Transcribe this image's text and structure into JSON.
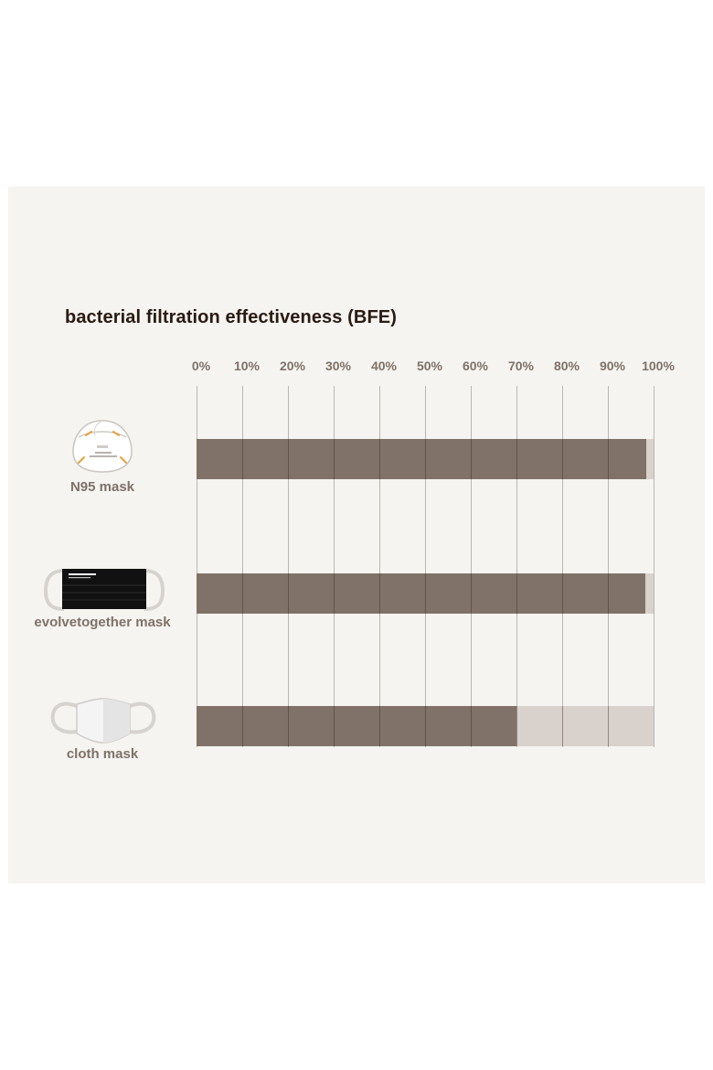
{
  "chart_data": {
    "type": "bar",
    "orientation": "horizontal",
    "title": "bacterial filtration effectiveness (BFE)",
    "x_ticks": [
      "0%",
      "10%",
      "20%",
      "30%",
      "40%",
      "50%",
      "60%",
      "70%",
      "80%",
      "90%",
      "100%"
    ],
    "xlim": [
      0,
      100
    ],
    "grid": true,
    "categories": [
      "N95 mask",
      "evolvetogether  mask",
      "cloth mask"
    ],
    "values": [
      98.3,
      98.2,
      70
    ],
    "colors": {
      "fill": "#807268",
      "remainder": "#d9d1cb",
      "gridline": "#bdb6b0"
    }
  },
  "icons": [
    "n95-mask-icon",
    "evolvetogether-mask-icon",
    "cloth-mask-icon"
  ]
}
